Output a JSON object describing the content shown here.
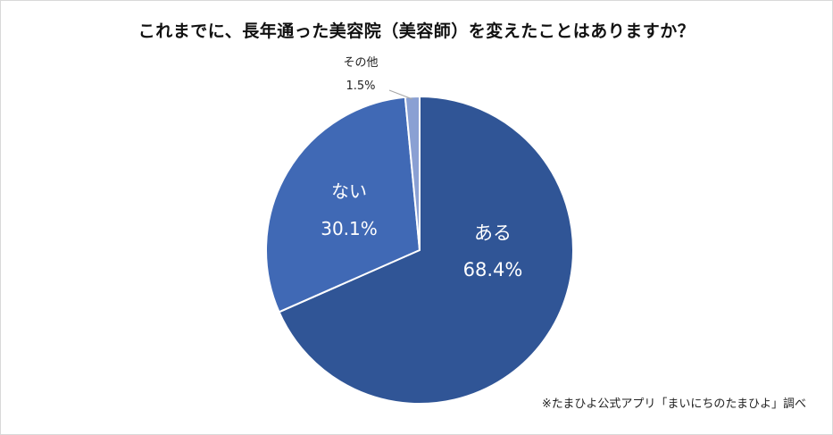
{
  "chart_data": {
    "type": "pie",
    "title": "これまでに、長年通った美容院（美容師）を変えたことはありますか？",
    "slices": [
      {
        "label": "ある",
        "value": 68.4,
        "value_label": "68.4%",
        "color": "#305596"
      },
      {
        "label": "ない",
        "value": 30.1,
        "value_label": "30.1%",
        "color": "#4069b5"
      },
      {
        "label": "その他",
        "value": 1.5,
        "value_label": "1.5%",
        "color": "#8aa0d3"
      }
    ],
    "source": "※たまひよ公式アプリ「まいにちのたまひよ」調べ"
  }
}
